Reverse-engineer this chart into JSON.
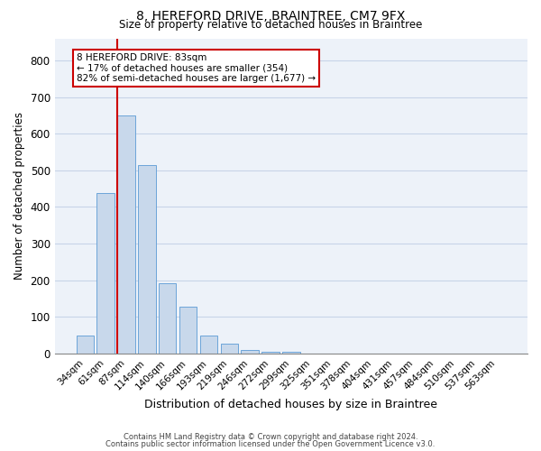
{
  "title1": "8, HEREFORD DRIVE, BRAINTREE, CM7 9FX",
  "title2": "Size of property relative to detached houses in Braintree",
  "xlabel": "Distribution of detached houses by size in Braintree",
  "ylabel": "Number of detached properties",
  "bar_labels": [
    "34sqm",
    "61sqm",
    "87sqm",
    "114sqm",
    "140sqm",
    "166sqm",
    "193sqm",
    "219sqm",
    "246sqm",
    "272sqm",
    "299sqm",
    "325sqm",
    "351sqm",
    "378sqm",
    "404sqm",
    "431sqm",
    "457sqm",
    "484sqm",
    "510sqm",
    "537sqm",
    "563sqm"
  ],
  "bar_values": [
    50,
    438,
    650,
    515,
    192,
    128,
    50,
    28,
    10,
    5,
    5,
    0,
    0,
    0,
    0,
    0,
    0,
    0,
    0,
    0,
    0
  ],
  "bar_color": "#c8d8eb",
  "bar_edge_color": "#5b9bd5",
  "red_line_bar_index": 2,
  "highlight_edge_color": "#cc0000",
  "ylim": [
    0,
    860
  ],
  "yticks": [
    0,
    100,
    200,
    300,
    400,
    500,
    600,
    700,
    800
  ],
  "grid_color": "#c8d4e8",
  "annotation_line1": "8 HEREFORD DRIVE: 83sqm",
  "annotation_line2": "← 17% of detached houses are smaller (354)",
  "annotation_line3": "82% of semi-detached houses are larger (1,677) →",
  "annotation_box_edge_color": "#cc0000",
  "footer1": "Contains HM Land Registry data © Crown copyright and database right 2024.",
  "footer2": "Contains public sector information licensed under the Open Government Licence v3.0.",
  "bg_color": "#edf2f9"
}
